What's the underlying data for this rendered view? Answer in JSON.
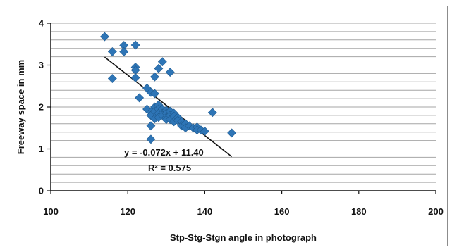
{
  "chart_data": {
    "type": "scatter",
    "title": "",
    "xlabel": "Stp-Stg-Stgn angle in photograph",
    "ylabel": "Freeway space in mm",
    "xlim": [
      100,
      200
    ],
    "ylim": [
      0,
      4
    ],
    "xticks": [
      "100",
      "120",
      "140",
      "160",
      "180",
      "200"
    ],
    "yticks": [
      "0",
      "1",
      "2",
      "3",
      "4"
    ],
    "grid": "horizontal",
    "legend": "none",
    "marker_color": "#2e75b6",
    "trendline_color": "#111111",
    "trendline": {
      "slope": -0.072,
      "intercept": 11.4,
      "x_range": [
        114,
        147
      ]
    },
    "equation": "y = -0.072x + 11.40",
    "r_squared_label": "R² = 0.575",
    "series": [
      {
        "points": [
          [
            114,
            3.68
          ],
          [
            116,
            3.32
          ],
          [
            116,
            2.68
          ],
          [
            119,
            3.47
          ],
          [
            119,
            3.32
          ],
          [
            122,
            3.48
          ],
          [
            122,
            2.95
          ],
          [
            122,
            2.88
          ],
          [
            122,
            2.7
          ],
          [
            128,
            2.92
          ],
          [
            129,
            3.08
          ],
          [
            131,
            2.83
          ],
          [
            127,
            2.72
          ],
          [
            123,
            2.22
          ],
          [
            125,
            2.45
          ],
          [
            126,
            2.35
          ],
          [
            127,
            2.32
          ],
          [
            125,
            1.95
          ],
          [
            126,
            1.88
          ],
          [
            126,
            1.8
          ],
          [
            127,
            1.72
          ],
          [
            127,
            2.0
          ],
          [
            127,
            1.9
          ],
          [
            128,
            2.05
          ],
          [
            128,
            1.95
          ],
          [
            128,
            1.85
          ],
          [
            128,
            1.75
          ],
          [
            129,
            1.95
          ],
          [
            129,
            1.85
          ],
          [
            129,
            1.8
          ],
          [
            130,
            1.92
          ],
          [
            130,
            1.85
          ],
          [
            130,
            1.75
          ],
          [
            130,
            1.7
          ],
          [
            131,
            1.9
          ],
          [
            131,
            1.8
          ],
          [
            131,
            1.7
          ],
          [
            132,
            1.85
          ],
          [
            132,
            1.78
          ],
          [
            132,
            1.65
          ],
          [
            133,
            1.75
          ],
          [
            133,
            1.68
          ],
          [
            134,
            1.65
          ],
          [
            134,
            1.55
          ],
          [
            135,
            1.6
          ],
          [
            135,
            1.5
          ],
          [
            136,
            1.55
          ],
          [
            137,
            1.5
          ],
          [
            138,
            1.52
          ],
          [
            138,
            1.45
          ],
          [
            139,
            1.45
          ],
          [
            140,
            1.42
          ],
          [
            142,
            1.87
          ],
          [
            147,
            1.38
          ],
          [
            126,
            1.23
          ],
          [
            126,
            1.55
          ]
        ]
      }
    ]
  }
}
